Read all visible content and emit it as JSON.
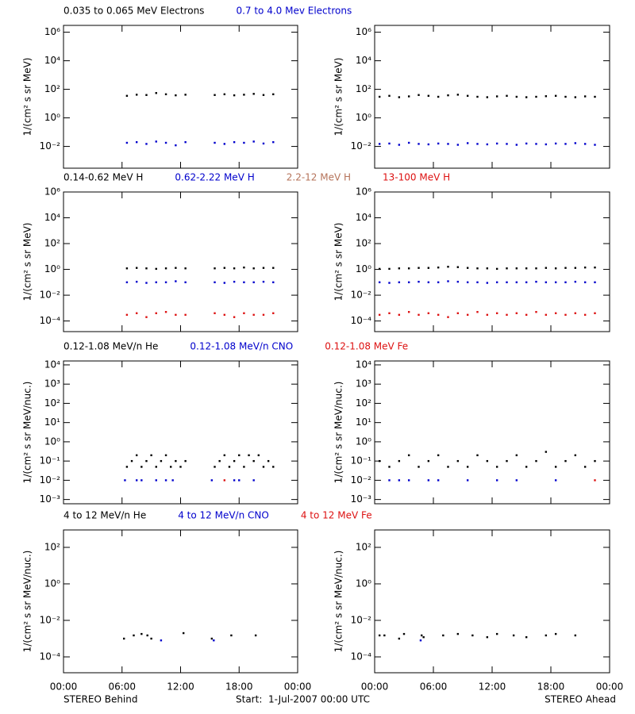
{
  "chart_data": [
    {
      "type": "scatter",
      "ylog": true,
      "ylabel": "1/(cm² s sr MeV)",
      "xlim": [
        0,
        24
      ],
      "ylim": [
        0.0003,
        3000000
      ],
      "yticks": [
        {
          "value": 0.01,
          "label": "10⁻²"
        },
        {
          "value": 1,
          "label": "10⁰"
        },
        {
          "value": 100,
          "label": "10²"
        },
        {
          "value": 10000,
          "label": "10⁴"
        },
        {
          "value": 1000000,
          "label": "10⁶"
        }
      ],
      "series": [
        {
          "name": "0.035 to 0.065 MeV Electrons",
          "color": "#000000",
          "x": [
            6.5,
            7.5,
            8.5,
            9.5,
            10.5,
            11.5,
            12.5,
            15.5,
            16.5,
            17.5,
            18.5,
            19.5,
            20.5,
            21.5
          ],
          "values": [
            35,
            42,
            40,
            55,
            45,
            38,
            42,
            40,
            45,
            38,
            42,
            48,
            40,
            45
          ]
        },
        {
          "name": "0.7 to 4.0 Mev Electrons",
          "color": "#0000cc",
          "x": [
            6.5,
            7.5,
            8.5,
            9.5,
            10.5,
            11.5,
            12.5,
            15.5,
            16.5,
            17.5,
            18.5,
            19.5,
            20.5,
            21.5
          ],
          "values": [
            0.018,
            0.02,
            0.015,
            0.022,
            0.018,
            0.012,
            0.02,
            0.018,
            0.015,
            0.02,
            0.018,
            0.022,
            0.016,
            0.02
          ]
        }
      ]
    },
    {
      "type": "scatter",
      "ylog": true,
      "ylabel": "1/(cm² s sr MeV)",
      "xlim": [
        0,
        24
      ],
      "ylim": [
        0.0003,
        3000000
      ],
      "yticks": [
        {
          "value": 0.01,
          "label": "10⁻²"
        },
        {
          "value": 1,
          "label": "10⁰"
        },
        {
          "value": 100,
          "label": "10²"
        },
        {
          "value": 10000,
          "label": "10⁴"
        },
        {
          "value": 1000000,
          "label": "10⁶"
        }
      ],
      "series": [
        {
          "color": "#000000",
          "x": [
            0.5,
            1.5,
            2.5,
            3.5,
            4.5,
            5.5,
            6.5,
            7.5,
            8.5,
            9.5,
            10.5,
            11.5,
            12.5,
            13.5,
            14.5,
            15.5,
            16.5,
            17.5,
            18.5,
            19.5,
            20.5,
            21.5,
            22.5
          ],
          "values": [
            30,
            35,
            28,
            32,
            40,
            35,
            30,
            38,
            42,
            35,
            30,
            28,
            32,
            35,
            30,
            28,
            30,
            33,
            35,
            30,
            28,
            32,
            30
          ]
        },
        {
          "color": "#0000cc",
          "x": [
            0.5,
            1.5,
            2.5,
            3.5,
            4.5,
            5.5,
            6.5,
            7.5,
            8.5,
            9.5,
            10.5,
            11.5,
            12.5,
            13.5,
            14.5,
            15.5,
            16.5,
            17.5,
            18.5,
            19.5,
            20.5,
            21.5,
            22.5
          ],
          "values": [
            0.015,
            0.016,
            0.013,
            0.018,
            0.015,
            0.014,
            0.016,
            0.015,
            0.013,
            0.017,
            0.015,
            0.014,
            0.016,
            0.015,
            0.013,
            0.016,
            0.015,
            0.014,
            0.016,
            0.015,
            0.017,
            0.015,
            0.013
          ]
        }
      ]
    },
    {
      "type": "scatter",
      "ylog": true,
      "ylabel": "1/(cm² s sr MeV)",
      "xlim": [
        0,
        24
      ],
      "ylim": [
        1.5e-05,
        1000000
      ],
      "yticks": [
        {
          "value": 0.0001,
          "label": "10⁻⁴"
        },
        {
          "value": 0.01,
          "label": "10⁻²"
        },
        {
          "value": 1,
          "label": "10⁰"
        },
        {
          "value": 100,
          "label": "10²"
        },
        {
          "value": 10000,
          "label": "10⁴"
        },
        {
          "value": 1000000,
          "label": "10⁶"
        }
      ],
      "series": [
        {
          "name": "0.14-0.62 MeV H",
          "color": "#000000",
          "x": [
            6.5,
            7.5,
            8.5,
            9.5,
            10.5,
            11.5,
            12.5,
            15.5,
            16.5,
            17.5,
            18.5,
            19.5,
            20.5,
            21.5
          ],
          "values": [
            1.2,
            1.3,
            1.2,
            1.1,
            1.2,
            1.3,
            1.2,
            1.2,
            1.3,
            1.2,
            1.4,
            1.2,
            1.3,
            1.3
          ]
        },
        {
          "name": "0.62-2.22 MeV H",
          "color": "#0000cc",
          "x": [
            6.5,
            7.5,
            8.5,
            9.5,
            10.5,
            11.5,
            12.5,
            15.5,
            16.5,
            17.5,
            18.5,
            19.5,
            20.5,
            21.5
          ],
          "values": [
            0.1,
            0.11,
            0.09,
            0.1,
            0.1,
            0.12,
            0.1,
            0.1,
            0.09,
            0.11,
            0.1,
            0.1,
            0.11,
            0.1
          ]
        },
        {
          "name": "2.2-12 MeV H",
          "color": "#b5735a",
          "x": [],
          "values": []
        },
        {
          "name": "13-100 MeV H",
          "color": "#dd1111",
          "x": [
            6.5,
            7.5,
            8.5,
            9.5,
            10.5,
            11.5,
            12.5,
            15.5,
            16.5,
            17.5,
            18.5,
            19.5,
            20.5,
            21.5
          ],
          "values": [
            0.0003,
            0.0004,
            0.0002,
            0.0004,
            0.0005,
            0.0003,
            0.0003,
            0.0004,
            0.0003,
            0.0002,
            0.0004,
            0.0003,
            0.0003,
            0.0004
          ]
        }
      ]
    },
    {
      "type": "scatter",
      "ylog": true,
      "ylabel": "1/(cm² s sr MeV)",
      "xlim": [
        0,
        24
      ],
      "ylim": [
        1.5e-05,
        1000000
      ],
      "yticks": [
        {
          "value": 0.0001,
          "label": "10⁻⁴"
        },
        {
          "value": 0.01,
          "label": "10⁻²"
        },
        {
          "value": 1,
          "label": "10⁰"
        },
        {
          "value": 100,
          "label": "10²"
        },
        {
          "value": 10000,
          "label": "10⁴"
        },
        {
          "value": 1000000,
          "label": "10⁶"
        }
      ],
      "series": [
        {
          "color": "#000000",
          "x": [
            0.5,
            1.5,
            2.5,
            3.5,
            4.5,
            5.5,
            6.5,
            7.5,
            8.5,
            9.5,
            10.5,
            11.5,
            12.5,
            13.5,
            14.5,
            15.5,
            16.5,
            17.5,
            18.5,
            19.5,
            20.5,
            21.5,
            22.5
          ],
          "values": [
            1.1,
            1.1,
            1.2,
            1.2,
            1.3,
            1.3,
            1.4,
            1.6,
            1.5,
            1.3,
            1.2,
            1.2,
            1.1,
            1.2,
            1.2,
            1.2,
            1.2,
            1.3,
            1.2,
            1.3,
            1.3,
            1.4,
            1.4
          ]
        },
        {
          "color": "#0000cc",
          "x": [
            0.5,
            1.5,
            2.5,
            3.5,
            4.5,
            5.5,
            6.5,
            7.5,
            8.5,
            9.5,
            10.5,
            11.5,
            12.5,
            13.5,
            14.5,
            15.5,
            16.5,
            17.5,
            18.5,
            19.5,
            20.5,
            21.5,
            22.5
          ],
          "values": [
            0.1,
            0.09,
            0.1,
            0.1,
            0.11,
            0.1,
            0.1,
            0.12,
            0.11,
            0.1,
            0.1,
            0.09,
            0.1,
            0.1,
            0.1,
            0.1,
            0.11,
            0.1,
            0.1,
            0.1,
            0.11,
            0.1,
            0.1
          ]
        },
        {
          "color": "#b5735a",
          "x": [],
          "values": []
        },
        {
          "color": "#dd1111",
          "x": [
            0.5,
            1.5,
            2.5,
            3.5,
            4.5,
            5.5,
            6.5,
            7.5,
            8.5,
            9.5,
            10.5,
            11.5,
            12.5,
            13.5,
            14.5,
            15.5,
            16.5,
            17.5,
            18.5,
            19.5,
            20.5,
            21.5,
            22.5
          ],
          "values": [
            0.0003,
            0.0004,
            0.0003,
            0.0005,
            0.0003,
            0.0004,
            0.0003,
            0.0002,
            0.0004,
            0.0003,
            0.0005,
            0.0003,
            0.0004,
            0.0003,
            0.0004,
            0.0003,
            0.0005,
            0.0003,
            0.0004,
            0.0003,
            0.0004,
            0.0003,
            0.0004
          ]
        }
      ]
    },
    {
      "type": "scatter",
      "ylog": true,
      "ylabel": "1/(cm² s sr MeV/nuc.)",
      "xlim": [
        0,
        24
      ],
      "ylim": [
        0.0006,
        16000
      ],
      "yticks": [
        {
          "value": 0.001,
          "label": "10⁻³"
        },
        {
          "value": 0.01,
          "label": "10⁻²"
        },
        {
          "value": 0.1,
          "label": "10⁻¹"
        },
        {
          "value": 1,
          "label": "10⁰"
        },
        {
          "value": 10,
          "label": "10¹"
        },
        {
          "value": 100,
          "label": "10²"
        },
        {
          "value": 1000,
          "label": "10³"
        },
        {
          "value": 10000,
          "label": "10⁴"
        }
      ],
      "series": [
        {
          "name": "0.12-1.08 MeV/n He",
          "color": "#000000",
          "x": [
            6.5,
            7,
            7.5,
            8,
            8.5,
            9,
            9.5,
            10,
            10.5,
            11,
            11.5,
            12,
            12.5,
            15.5,
            16,
            16.5,
            17,
            17.5,
            18,
            18.5,
            19,
            19.5,
            20,
            20.5,
            21,
            21.5
          ],
          "values": [
            0.05,
            0.1,
            0.2,
            0.05,
            0.1,
            0.2,
            0.05,
            0.1,
            0.2,
            0.05,
            0.1,
            0.05,
            0.1,
            0.05,
            0.1,
            0.2,
            0.05,
            0.1,
            0.2,
            0.05,
            0.2,
            0.1,
            0.2,
            0.05,
            0.1,
            0.05
          ]
        },
        {
          "name": "0.12-1.08 MeV/n CNO",
          "color": "#0000cc",
          "x": [
            6.3,
            7.5,
            8.0,
            9.5,
            10.5,
            11.2,
            15.2,
            17.5,
            18.0,
            19.5
          ],
          "values": [
            0.01,
            0.01,
            0.01,
            0.01,
            0.01,
            0.01,
            0.01,
            0.01,
            0.01,
            0.01
          ]
        },
        {
          "name": "0.12-1.08 MeV Fe",
          "color": "#dd1111",
          "x": [
            16.5
          ],
          "values": [
            0.01
          ]
        }
      ]
    },
    {
      "type": "scatter",
      "ylog": true,
      "ylabel": "1/(cm² s sr MeV/nuc.)",
      "xlim": [
        0,
        24
      ],
      "ylim": [
        0.0006,
        16000
      ],
      "yticks": [
        {
          "value": 0.001,
          "label": "10⁻³"
        },
        {
          "value": 0.01,
          "label": "10⁻²"
        },
        {
          "value": 0.1,
          "label": "10⁻¹"
        },
        {
          "value": 1,
          "label": "10⁰"
        },
        {
          "value": 10,
          "label": "10¹"
        },
        {
          "value": 100,
          "label": "10²"
        },
        {
          "value": 1000,
          "label": "10³"
        },
        {
          "value": 10000,
          "label": "10⁴"
        }
      ],
      "series": [
        {
          "color": "#000000",
          "x": [
            0.5,
            1.5,
            2.5,
            3.5,
            4.5,
            5.5,
            6.5,
            7.5,
            8.5,
            9.5,
            10.5,
            11.5,
            12.5,
            13.5,
            14.5,
            15.5,
            16.5,
            17.5,
            18.5,
            19.5,
            20.5,
            21.5,
            22.5
          ],
          "values": [
            0.1,
            0.05,
            0.1,
            0.2,
            0.05,
            0.1,
            0.2,
            0.05,
            0.1,
            0.05,
            0.2,
            0.1,
            0.05,
            0.1,
            0.2,
            0.05,
            0.1,
            0.3,
            0.05,
            0.1,
            0.2,
            0.05,
            0.1
          ]
        },
        {
          "color": "#0000cc",
          "x": [
            1.5,
            2.5,
            3.5,
            5.5,
            6.5,
            9.5,
            12.5,
            14.5,
            18.5
          ],
          "values": [
            0.01,
            0.01,
            0.01,
            0.01,
            0.01,
            0.01,
            0.01,
            0.01,
            0.01
          ]
        },
        {
          "color": "#dd1111",
          "x": [
            22.5
          ],
          "values": [
            0.01
          ]
        }
      ]
    },
    {
      "type": "scatter",
      "ylog": true,
      "ylabel": "1/(cm² s sr MeV/nuc.)",
      "xlim": [
        0,
        24
      ],
      "ylim": [
        1.35e-05,
        900
      ],
      "yticks": [
        {
          "value": 0.0001,
          "label": "10⁻⁴"
        },
        {
          "value": 0.01,
          "label": "10⁻²"
        },
        {
          "value": 1,
          "label": "10⁰"
        },
        {
          "value": 100,
          "label": "10²"
        }
      ],
      "xticks": [
        {
          "value": 0,
          "label": "00:00"
        },
        {
          "value": 6,
          "label": "06:00"
        },
        {
          "value": 12,
          "label": "12:00"
        },
        {
          "value": 18,
          "label": "18:00"
        },
        {
          "value": 24,
          "label": "00:00"
        }
      ],
      "series": [
        {
          "name": "4 to 12 MeV/n He",
          "color": "#000000",
          "x": [
            6.2,
            7.2,
            8,
            8.6,
            9,
            12.3,
            15.2,
            17.2,
            19.7
          ],
          "values": [
            0.001,
            0.0015,
            0.0018,
            0.0015,
            0.001,
            0.002,
            0.001,
            0.0015,
            0.0015
          ]
        },
        {
          "name": "4 to 12 MeV/n CNO",
          "color": "#0000cc",
          "x": [
            10,
            15.4
          ],
          "values": [
            0.0008,
            0.0008
          ]
        },
        {
          "name": "4 to 12 MeV Fe",
          "color": "#dd1111",
          "x": [],
          "values": []
        }
      ]
    },
    {
      "type": "scatter",
      "ylog": true,
      "ylabel": "1/(cm² s sr MeV/nuc.)",
      "xlim": [
        0,
        24
      ],
      "ylim": [
        1.35e-05,
        900
      ],
      "yticks": [
        {
          "value": 0.0001,
          "label": "10⁻⁴"
        },
        {
          "value": 0.01,
          "label": "10⁻²"
        },
        {
          "value": 1,
          "label": "10⁰"
        },
        {
          "value": 100,
          "label": "10²"
        }
      ],
      "xticks": [
        {
          "value": 0,
          "label": "00:00"
        },
        {
          "value": 6,
          "label": "06:00"
        },
        {
          "value": 12,
          "label": "12:00"
        },
        {
          "value": 18,
          "label": "18:00"
        },
        {
          "value": 24,
          "label": "00:00"
        }
      ],
      "series": [
        {
          "color": "#000000",
          "x": [
            0.5,
            1,
            2.5,
            3,
            4.8,
            5,
            7,
            8.5,
            10,
            11.5,
            12.5,
            14.2,
            15.5,
            17.5,
            18.5,
            20.5
          ],
          "values": [
            0.0015,
            0.0015,
            0.001,
            0.0018,
            0.0015,
            0.0012,
            0.0015,
            0.0018,
            0.0015,
            0.0012,
            0.0018,
            0.0015,
            0.0012,
            0.0015,
            0.0018,
            0.0015
          ]
        },
        {
          "color": "#0000cc",
          "x": [
            4.7
          ],
          "values": [
            0.0008
          ]
        },
        {
          "color": "#dd1111",
          "x": [],
          "values": []
        }
      ]
    }
  ],
  "footer": {
    "left": "STEREO Behind",
    "center": "Start:  1-Jul-2007 00:00 UTC",
    "right": "STEREO Ahead"
  }
}
